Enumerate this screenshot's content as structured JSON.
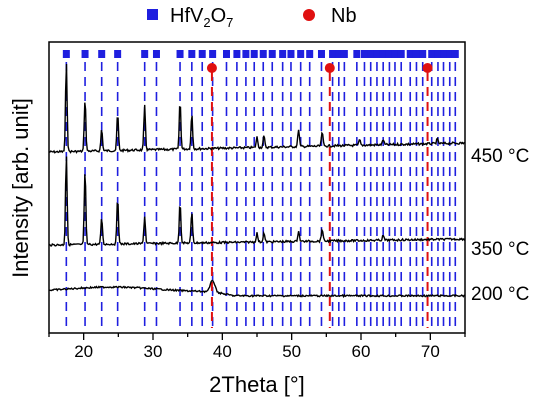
{
  "chart_data": {
    "type": "line",
    "xlabel": "2Theta [°]",
    "ylabel": "Intensity [arb. unit]",
    "xlim": [
      15,
      75
    ],
    "x_ticks": [
      20,
      30,
      40,
      50,
      60,
      70
    ],
    "legend": {
      "placement": "top",
      "entries": [
        {
          "name": "HfV",
          "sub1": "2",
          "mid": "O",
          "sub2": "7",
          "marker": "square",
          "color": "#1f1fdf"
        },
        {
          "name": "Nb",
          "marker": "circle",
          "color": "#e01010"
        }
      ]
    },
    "reference_peaks": {
      "HfV2O7": [
        17.5,
        20.2,
        22.6,
        24.9,
        28.8,
        30.5,
        33.9,
        35.6,
        37.1,
        38.6,
        40.6,
        42.1,
        43.4,
        44.6,
        45.9,
        47.2,
        48.7,
        49.9,
        51.3,
        52.6,
        54.3,
        55.9,
        56.8,
        57.6,
        59.4,
        60.5,
        61.4,
        62.3,
        63.2,
        64.1,
        64.9,
        65.8,
        67.1,
        68.0,
        68.9,
        70.2,
        71.1,
        71.9,
        72.8,
        73.6
      ],
      "Nb": [
        38.5,
        55.5,
        69.6
      ]
    },
    "series": [
      {
        "name": "450 °C",
        "peaks": [
          [
            17.5,
            1.0
          ],
          [
            20.2,
            0.6
          ],
          [
            22.6,
            0.25
          ],
          [
            24.9,
            0.42
          ],
          [
            28.8,
            0.5
          ],
          [
            33.9,
            0.55
          ],
          [
            35.6,
            0.4
          ],
          [
            45.0,
            0.12
          ],
          [
            46.0,
            0.13
          ],
          [
            51.0,
            0.2
          ],
          [
            54.4,
            0.16
          ],
          [
            59.8,
            0.06
          ],
          [
            63.2,
            0.06
          ],
          [
            71.0,
            0.05
          ]
        ]
      },
      {
        "name": "350 °C",
        "peaks": [
          [
            17.5,
            1.0
          ],
          [
            20.2,
            0.82
          ],
          [
            22.6,
            0.3
          ],
          [
            24.9,
            0.52
          ],
          [
            28.8,
            0.3
          ],
          [
            33.9,
            0.46
          ],
          [
            35.6,
            0.34
          ],
          [
            45.0,
            0.1
          ],
          [
            46.0,
            0.1
          ],
          [
            51.0,
            0.12
          ],
          [
            54.4,
            0.14
          ],
          [
            63.2,
            0.05
          ]
        ]
      },
      {
        "name": "200 °C",
        "peaks": [
          [
            38.6,
            0.3
          ]
        ]
      }
    ]
  }
}
